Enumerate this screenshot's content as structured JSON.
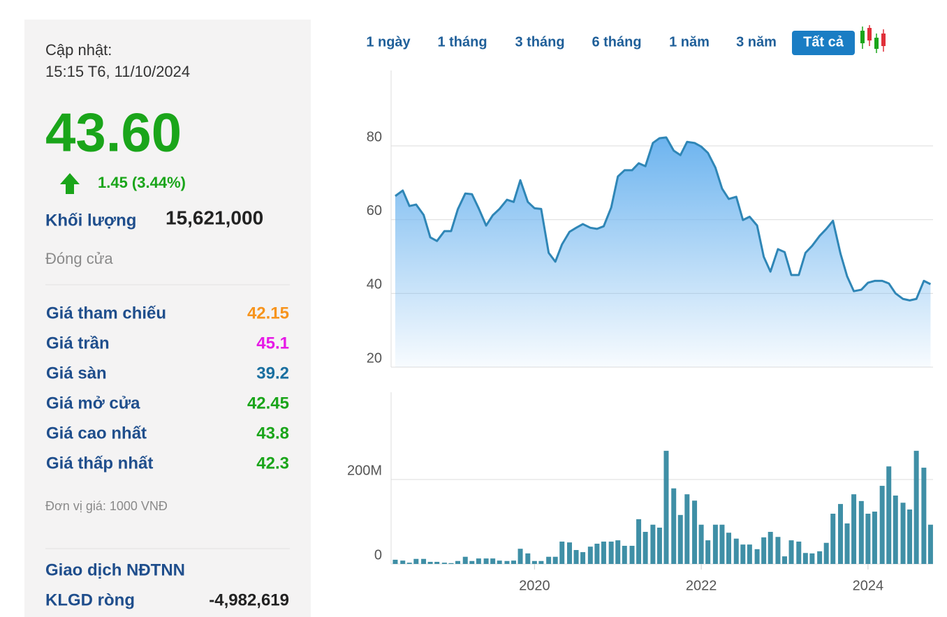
{
  "panel": {
    "update_label": "Cập nhật:",
    "update_time": "15:15 T6, 11/10/2024",
    "price": "43.60",
    "change": "1.45 (3.44%)",
    "volume_label": "Khối lượng",
    "volume": "15,621,000",
    "status": "Đóng cửa",
    "stats": [
      {
        "label": "Giá tham chiếu",
        "value": "42.15",
        "color": "#f7941d"
      },
      {
        "label": "Giá trần",
        "value": "45.1",
        "color": "#e619e6"
      },
      {
        "label": "Giá sàn",
        "value": "39.2",
        "color": "#1a6fa0"
      },
      {
        "label": "Giá mở cửa",
        "value": "42.45",
        "color": "#1aa51a"
      },
      {
        "label": "Giá cao nhất",
        "value": "43.8",
        "color": "#1aa51a"
      },
      {
        "label": "Giá thấp nhất",
        "value": "42.3",
        "color": "#1aa51a"
      }
    ],
    "unit_note": "Đơn vị giá: 1000 VNĐ",
    "foreign_title": "Giao dịch NĐTNN",
    "net_label": "KLGD ròng",
    "net_value": "-4,982,619"
  },
  "tabs": {
    "items": [
      "1 ngày",
      "1 tháng",
      "3 tháng",
      "6 tháng",
      "1 năm",
      "3 năm",
      "Tất cả"
    ],
    "active": 6
  },
  "chart_data": [
    {
      "type": "area",
      "color": "#2f86b6",
      "x": [
        2018.33,
        2018.42,
        2018.5,
        2018.58,
        2018.67,
        2018.75,
        2018.83,
        2018.92,
        2019.0,
        2019.08,
        2019.17,
        2019.25,
        2019.33,
        2019.42,
        2019.5,
        2019.58,
        2019.67,
        2019.75,
        2019.83,
        2019.92,
        2020.0,
        2020.08,
        2020.17,
        2020.25,
        2020.33,
        2020.42,
        2020.5,
        2020.58,
        2020.67,
        2020.75,
        2020.83,
        2020.92,
        2021.0,
        2021.08,
        2021.17,
        2021.25,
        2021.33,
        2021.42,
        2021.5,
        2021.58,
        2021.67,
        2021.75,
        2021.83,
        2021.92,
        2022.0,
        2022.08,
        2022.17,
        2022.25,
        2022.33,
        2022.42,
        2022.5,
        2022.58,
        2022.67,
        2022.75,
        2022.83,
        2022.92,
        2023.0,
        2023.08,
        2023.17,
        2023.25,
        2023.33,
        2023.42,
        2023.5,
        2023.58,
        2023.67,
        2023.75,
        2023.83,
        2023.92,
        2024.0,
        2024.08,
        2024.17,
        2024.25,
        2024.33,
        2024.42,
        2024.5,
        2024.58,
        2024.67,
        2024.75
      ],
      "values": [
        66.4,
        67.9,
        63.7,
        64.1,
        61.3,
        55.2,
        54.2,
        56.9,
        56.9,
        62.8,
        67.1,
        66.9,
        63.1,
        58.4,
        61.2,
        62.9,
        65.4,
        64.8,
        70.7,
        64.8,
        63.1,
        62.9,
        51.0,
        48.6,
        53.3,
        56.7,
        57.8,
        58.8,
        57.8,
        57.5,
        58.2,
        63.3,
        71.7,
        73.4,
        73.4,
        75.3,
        74.5,
        80.8,
        82.1,
        82.3,
        78.7,
        77.5,
        81.1,
        80.8,
        79.8,
        78.1,
        74.1,
        68.4,
        65.6,
        66.2,
        59.9,
        60.8,
        58.4,
        49.9,
        45.9,
        52.0,
        51.2,
        45.0,
        45.0,
        51.0,
        52.9,
        55.6,
        57.5,
        59.7,
        50.8,
        44.6,
        40.6,
        41.0,
        42.9,
        43.4,
        43.4,
        42.7,
        40.0,
        38.5,
        38.1,
        38.5,
        43.4,
        42.5
      ],
      "xlim": [
        2018.28,
        2024.78
      ],
      "ylim": [
        20,
        100
      ],
      "yticks": [
        20,
        40,
        60,
        80
      ],
      "grid": true
    },
    {
      "type": "bar",
      "color": "#3f8fa6",
      "x": [
        2018.33,
        2018.42,
        2018.5,
        2018.58,
        2018.67,
        2018.75,
        2018.83,
        2018.92,
        2019.0,
        2019.08,
        2019.17,
        2019.25,
        2019.33,
        2019.42,
        2019.5,
        2019.58,
        2019.67,
        2019.75,
        2019.83,
        2019.92,
        2020.0,
        2020.08,
        2020.17,
        2020.25,
        2020.33,
        2020.42,
        2020.5,
        2020.58,
        2020.67,
        2020.75,
        2020.83,
        2020.92,
        2021.0,
        2021.08,
        2021.17,
        2021.25,
        2021.33,
        2021.42,
        2021.5,
        2021.58,
        2021.67,
        2021.75,
        2021.83,
        2021.92,
        2022.0,
        2022.08,
        2022.17,
        2022.25,
        2022.33,
        2022.42,
        2022.5,
        2022.58,
        2022.67,
        2022.75,
        2022.83,
        2022.92,
        2023.0,
        2023.08,
        2023.17,
        2023.25,
        2023.33,
        2023.42,
        2023.5,
        2023.58,
        2023.67,
        2023.75,
        2023.83,
        2023.92,
        2024.0,
        2024.08,
        2024.17,
        2024.25,
        2024.33,
        2024.42,
        2024.5,
        2024.58,
        2024.67,
        2024.75
      ],
      "values": [
        10000000,
        8000000,
        3000000,
        12000000,
        12000000,
        5000000,
        5000000,
        3000000,
        2000000,
        7000000,
        17000000,
        7000000,
        13000000,
        13000000,
        13000000,
        8000000,
        7000000,
        8000000,
        36000000,
        25000000,
        7000000,
        7000000,
        17000000,
        17000000,
        53000000,
        51000000,
        33000000,
        28000000,
        41000000,
        48000000,
        53000000,
        53000000,
        56000000,
        43000000,
        43000000,
        106000000,
        76000000,
        93000000,
        86000000,
        268000000,
        179000000,
        116000000,
        165000000,
        150000000,
        93000000,
        56000000,
        93000000,
        93000000,
        74000000,
        60000000,
        46000000,
        46000000,
        35000000,
        63000000,
        76000000,
        64000000,
        18000000,
        56000000,
        53000000,
        26000000,
        25000000,
        30000000,
        50000000,
        119000000,
        142000000,
        96000000,
        165000000,
        149000000,
        119000000,
        124000000,
        185000000,
        231000000,
        162000000,
        145000000,
        129000000,
        268000000,
        228000000,
        93000000
      ],
      "xlim": [
        2018.28,
        2024.78
      ],
      "xticks": [
        2020,
        2022,
        2024
      ],
      "ylim": [
        0,
        400000000
      ],
      "yticks": [
        0,
        {
          "value": 200000000,
          "label": "200M"
        }
      ],
      "grid": true
    }
  ]
}
